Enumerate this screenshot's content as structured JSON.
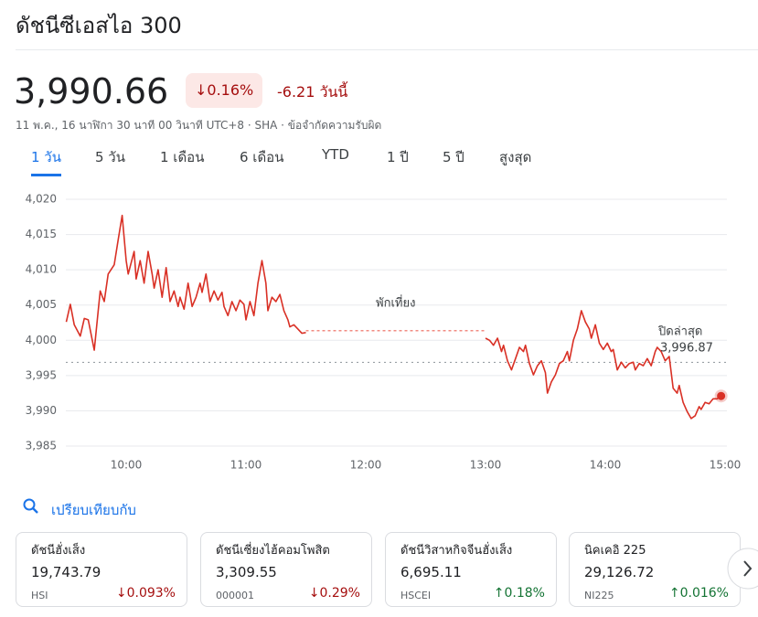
{
  "header": {
    "title": "ดัชนีซีเอสไอ 300",
    "price": "3,990.66",
    "change_percent": "↓0.16%",
    "change_today": "-6.21 วันนี้",
    "subtitle": "11 พ.ค., 16 นาฬิกา 30 นาที 00 วินาที UTC+8 · SHA · ข้อจำกัดความรับผิด"
  },
  "tabs": [
    {
      "label": "1 วัน",
      "active": true
    },
    {
      "label": "5 วัน",
      "active": false
    },
    {
      "label": "1 เดือน",
      "active": false
    },
    {
      "label": "6 เดือน",
      "active": false
    },
    {
      "label": "YTD",
      "active": false
    },
    {
      "label": "1 ปี",
      "active": false
    },
    {
      "label": "5 ปี",
      "active": false
    },
    {
      "label": "สูงสุด",
      "active": false
    }
  ],
  "chart_data": {
    "type": "line",
    "color": "#d93025",
    "lunch_label": "พักเที่ยง",
    "previous_close_title": "ปิดล่าสุด",
    "previous_close": {
      "value": 3996.87,
      "label": "3,996.87"
    },
    "x": [
      570,
      572,
      574,
      577,
      579,
      581,
      584,
      586,
      587,
      589,
      591,
      594,
      596,
      598,
      600,
      601,
      604,
      605,
      607,
      609,
      611,
      613,
      614,
      616,
      618,
      620,
      622,
      624,
      626,
      627,
      629,
      631,
      633,
      635,
      637,
      638,
      640,
      642,
      644,
      646,
      648,
      649,
      651,
      653,
      655,
      657,
      659,
      660,
      662,
      664,
      666,
      668,
      670,
      671,
      673,
      675,
      677,
      679,
      681,
      682,
      684,
      686,
      688,
      690,
      735,
      780,
      782,
      784,
      786,
      788,
      789,
      791,
      793,
      795,
      797,
      799,
      800,
      802,
      804,
      806,
      808,
      810,
      811,
      813,
      815,
      817,
      819,
      821,
      822,
      824,
      826,
      828,
      830,
      832,
      833,
      835,
      837,
      839,
      841,
      843,
      844,
      846,
      848,
      850,
      852,
      854,
      855,
      857,
      859,
      861,
      863,
      865,
      866,
      868,
      870,
      872,
      874,
      876,
      877,
      879,
      881,
      883,
      885,
      887,
      888,
      890,
      892,
      894,
      896,
      898
    ],
    "values": [
      4002.6,
      4005.1,
      4002.2,
      4000.6,
      4003.1,
      4002.9,
      3998.6,
      4004.2,
      4007.0,
      4005.5,
      4009.4,
      4010.7,
      4014.3,
      4017.7,
      4011.3,
      4009.4,
      4012.6,
      4008.7,
      4011.3,
      4008.1,
      4012.6,
      4009.4,
      4007.4,
      4010.0,
      4006.1,
      4010.3,
      4005.5,
      4007.0,
      4004.8,
      4006.1,
      4004.4,
      4008.1,
      4004.8,
      4006.1,
      4008.1,
      4006.8,
      4009.4,
      4005.5,
      4007.0,
      4005.7,
      4006.8,
      4004.8,
      4003.5,
      4005.5,
      4004.2,
      4005.7,
      4005.1,
      4002.9,
      4005.5,
      4003.5,
      4008.1,
      4011.3,
      4008.1,
      4004.2,
      4006.1,
      4005.5,
      4006.5,
      4004.2,
      4002.9,
      4001.9,
      4002.2,
      4001.6,
      4001.0,
      4001.1,
      null,
      4000.3,
      4000.0,
      3999.3,
      4000.3,
      3998.4,
      3999.3,
      3997.1,
      3995.8,
      3997.4,
      3999.0,
      3998.4,
      3999.3,
      3996.7,
      3995.1,
      3996.4,
      3997.1,
      3995.4,
      3992.5,
      3994.1,
      3995.1,
      3996.7,
      3997.1,
      3998.4,
      3997.1,
      4000.0,
      4001.6,
      4004.2,
      4002.6,
      4001.6,
      4000.3,
      4002.2,
      3999.6,
      3998.7,
      3999.6,
      3998.4,
      3998.7,
      3995.8,
      3996.9,
      3996.1,
      3996.7,
      3996.9,
      3995.8,
      3996.7,
      3996.4,
      3997.4,
      3996.4,
      3998.4,
      3999.0,
      3998.4,
      3997.1,
      3997.7,
      3993.2,
      3992.5,
      3993.6,
      3991.2,
      3989.9,
      3988.9,
      3989.3,
      3990.6,
      3990.2,
      3991.2,
      3991.0,
      3991.7,
      3991.7,
      3992.1
    ],
    "xlim": [
      570,
      900
    ],
    "xticks": [
      {
        "value": 600,
        "label": "10:00"
      },
      {
        "value": 660,
        "label": "11:00"
      },
      {
        "value": 720,
        "label": "12:00"
      },
      {
        "value": 780,
        "label": "13:00"
      },
      {
        "value": 840,
        "label": "14:00"
      },
      {
        "value": 900,
        "label": "15:00"
      }
    ],
    "ylim": [
      3985,
      4020
    ],
    "yticks": [
      {
        "value": 4020,
        "label": "4,020"
      },
      {
        "value": 4015,
        "label": "4,015"
      },
      {
        "value": 4010,
        "label": "4,010"
      },
      {
        "value": 4005,
        "label": "4,005"
      },
      {
        "value": 4000,
        "label": "4,000"
      },
      {
        "value": 3995,
        "label": "3,995"
      },
      {
        "value": 3990,
        "label": "3,990"
      },
      {
        "value": 3985,
        "label": "3,985"
      }
    ],
    "grid": true
  },
  "compare": {
    "label": "เปรียบเทียบกับ",
    "cards": [
      {
        "name": "ดัชนีฮั่งเส็ง",
        "price": "19,743.79",
        "ticker": "HSI",
        "change": "↓0.093%",
        "color": "#a50e0e"
      },
      {
        "name": "ดัชนีเซี่ยงไฮ้คอมโพสิต",
        "price": "3,309.55",
        "ticker": "000001",
        "change": "↓0.29%",
        "color": "#a50e0e"
      },
      {
        "name": "ดัชนีวิสาหกิจจีนฮั่งเส็ง",
        "price": "6,695.11",
        "ticker": "HSCEI",
        "change": "↑0.18%",
        "color": "#137333"
      },
      {
        "name": "นิคเคอิ 225",
        "price": "29,126.72",
        "ticker": "NI225",
        "change": "↑0.016%",
        "color": "#137333"
      }
    ]
  }
}
